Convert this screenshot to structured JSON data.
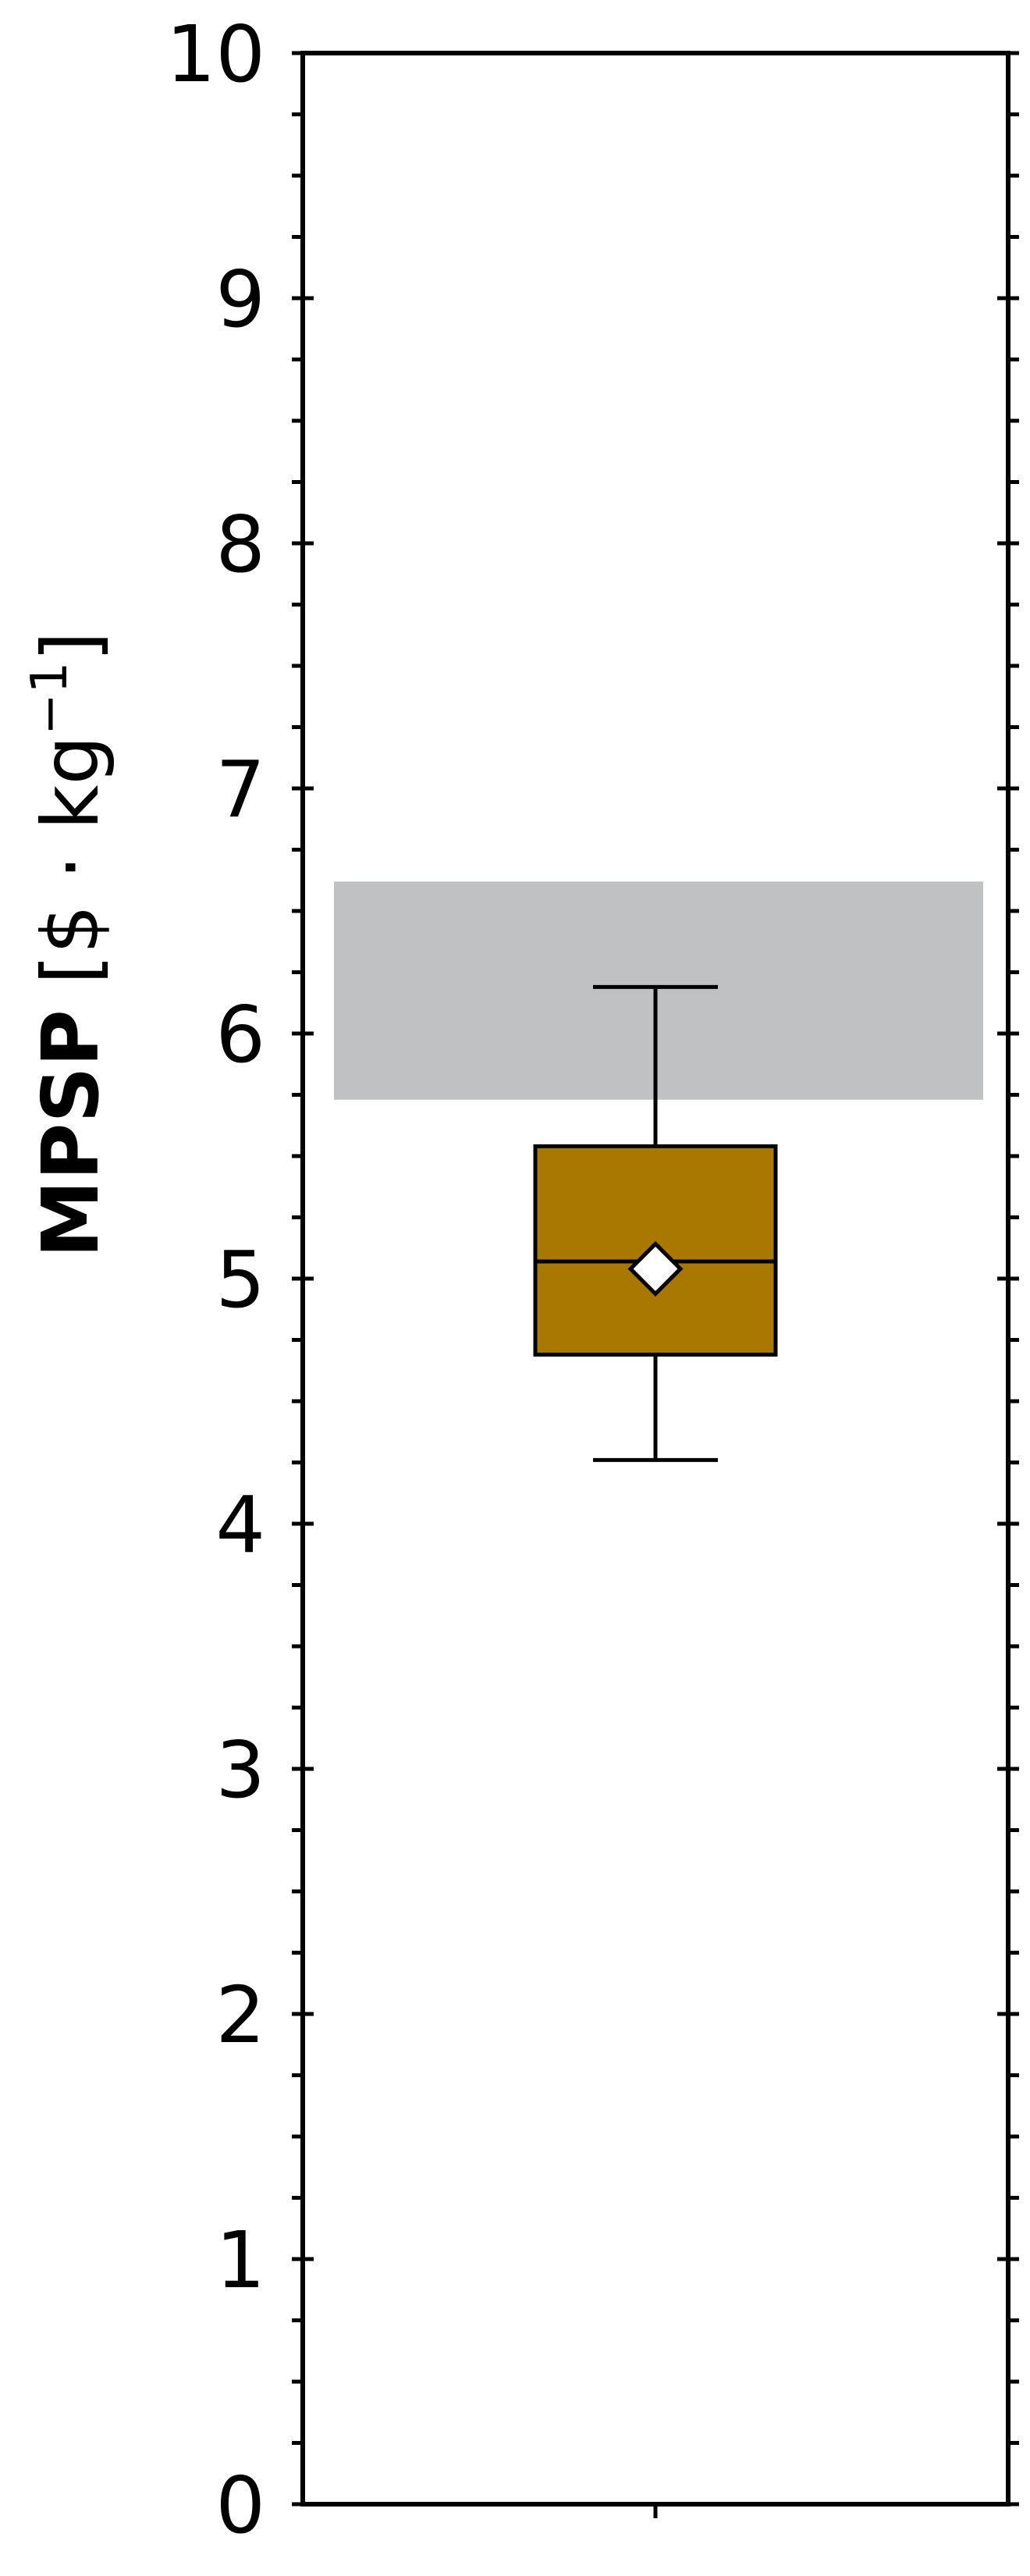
{
  "chart_data": {
    "type": "box",
    "ylabel_bold": "MPSP",
    "ylabel_units_open": "[$ · kg",
    "ylabel_units_sup": "−1",
    "ylabel_units_close": "]",
    "ylim": [
      0,
      10
    ],
    "yticks": [
      "0",
      "1",
      "2",
      "3",
      "4",
      "5",
      "6",
      "7",
      "8",
      "9",
      "10"
    ],
    "grid": false,
    "reference_band": {
      "low": 5.73,
      "high": 6.62,
      "color": "#c0c1c3"
    },
    "box": {
      "whisker_low": 4.26,
      "q1": 4.69,
      "median": 5.07,
      "q3": 5.54,
      "whisker_high": 6.19,
      "mean": 5.04,
      "color": "#a87800"
    }
  }
}
